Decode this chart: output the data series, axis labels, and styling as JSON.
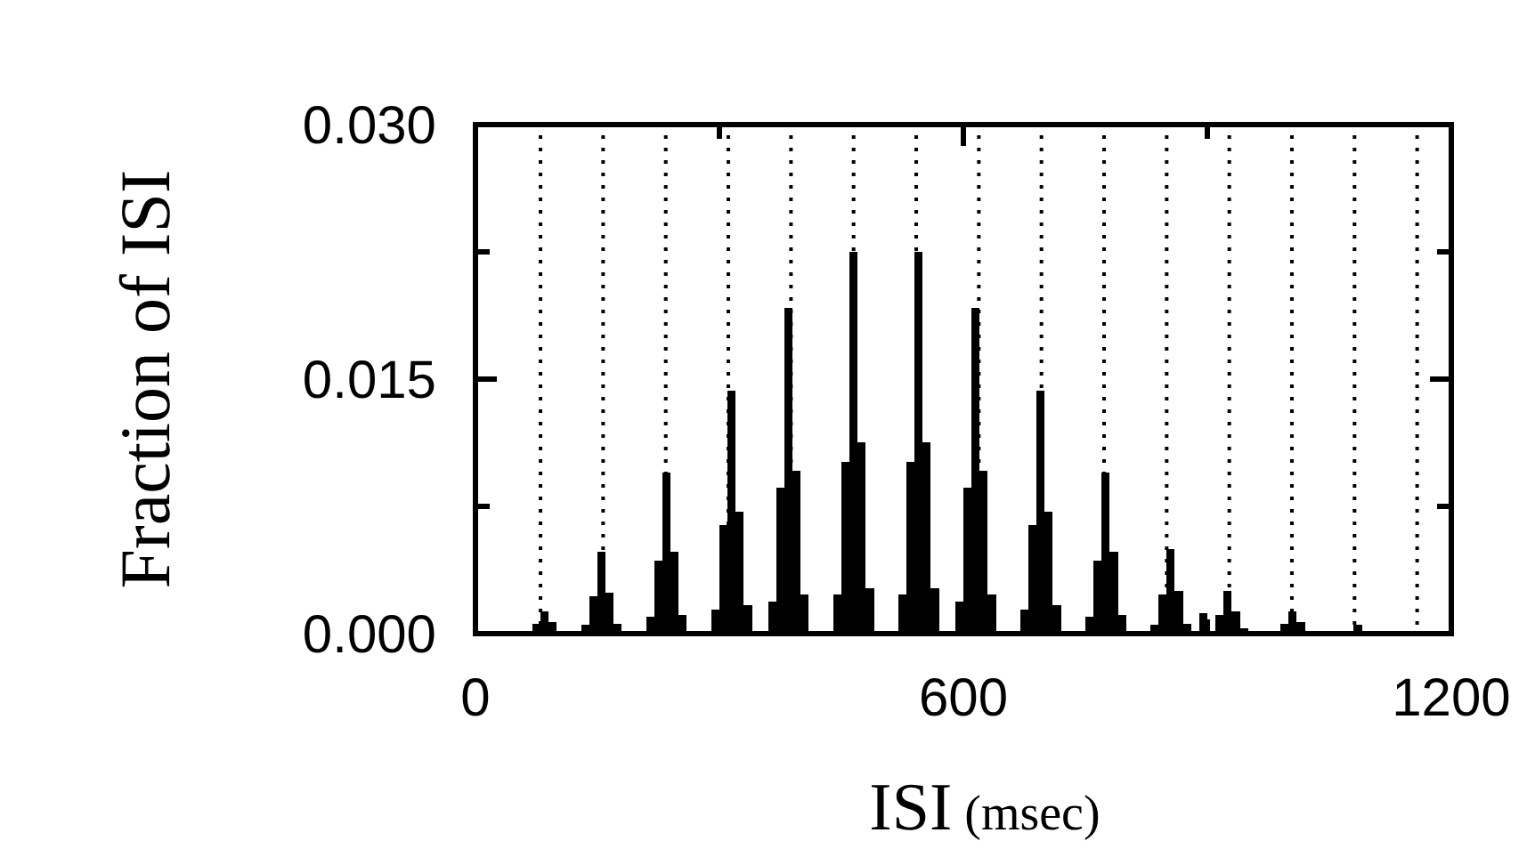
{
  "chart_data": {
    "type": "histogram",
    "xlabel": "ISI (msec)",
    "ylabel": "Fraction of ISI",
    "bins": [
      0,
      10,
      20,
      30,
      40,
      50,
      60,
      70,
      80,
      90,
      100,
      110,
      120,
      130,
      140,
      150,
      160,
      170,
      180,
      190,
      200,
      210,
      220,
      230,
      240,
      250,
      260,
      270,
      280,
      290,
      300,
      310,
      320,
      330,
      340,
      350,
      360,
      370,
      380,
      390,
      400,
      410,
      420,
      430,
      440,
      450,
      460,
      470,
      480,
      490,
      500,
      510,
      520,
      530,
      540,
      550,
      560,
      570,
      580,
      590,
      600,
      610,
      620,
      630,
      640,
      650,
      660,
      670,
      680,
      690,
      700,
      710,
      720,
      730,
      740,
      750,
      760,
      770,
      780,
      790,
      800,
      810,
      820,
      830,
      840,
      850,
      860,
      870,
      880,
      890,
      900,
      910,
      920,
      930,
      940,
      950,
      960,
      970,
      980,
      990,
      1000,
      1010,
      1020,
      1030,
      1040,
      1050,
      1060,
      1070,
      1080,
      1090,
      1100,
      1110,
      1120,
      1130,
      1140,
      1150,
      1160,
      1170,
      1180,
      1190,
      1200
    ],
    "values": [
      0,
      0,
      0,
      0,
      0,
      0,
      0.0001,
      0.0006,
      0.0013,
      0.0007,
      null,
      0,
      0,
      0.0005,
      0.0022,
      0.0048,
      0.0024,
      0.0006,
      0,
      0,
      0,
      0.001,
      0.0043,
      0.0095,
      0.0048,
      0.0011,
      0,
      0,
      0,
      0.0014,
      0.0064,
      0.0143,
      0.0072,
      0.0017,
      0,
      0,
      0.0019,
      0.0086,
      0.0192,
      0.0096,
      0.0023,
      0,
      0,
      0,
      0.0023,
      0.0101,
      0.0225,
      0.0113,
      0.0027,
      0,
      0,
      0,
      0.0023,
      0.0101,
      0.0225,
      0.0113,
      0.0027,
      0,
      0,
      0.0019,
      0.0086,
      0.0192,
      0.0096,
      0.0023,
      0,
      0,
      0,
      0.0014,
      0.0064,
      0.0143,
      0.0072,
      0.0017,
      0,
      0,
      0,
      0.001,
      0.0043,
      0.0095,
      0.0048,
      0.0011,
      0,
      0,
      0,
      0.0005,
      0.0023,
      0.005,
      0.0025,
      0.0006,
      0,
      0.0012,
      null,
      0.0011,
      0.0025,
      0.0013,
      0.0003,
      0,
      0,
      0,
      0.0001,
      0.0006,
      0.0013,
      0.0007,
      null,
      0,
      0,
      0,
      0,
      null,
      0.0005,
      null,
      0,
      0,
      0,
      0,
      0,
      0,
      0,
      0,
      0,
      0
    ],
    "color": "#000000",
    "xlim": [
      0,
      1200
    ],
    "xticks": [
      0,
      {
        "value": 300,
        "label": null
      },
      600,
      {
        "value": 900,
        "label": null
      },
      1200
    ],
    "ylim": [
      0,
      0.03
    ],
    "yticks": [
      {
        "value": 0,
        "label": "0.000"
      },
      {
        "value": 0.0075,
        "label": null
      },
      {
        "value": 0.015,
        "label": "0.015"
      },
      {
        "value": 0.0225,
        "label": null
      },
      {
        "value": 0.03,
        "label": "0.030"
      }
    ],
    "ref_lines": [
      {
        "axis": "x",
        "value": 80,
        "line_style": "dotted",
        "color": "#000000"
      },
      {
        "axis": "x",
        "value": 157,
        "line_style": "dotted",
        "color": "#000000"
      },
      {
        "axis": "x",
        "value": 234,
        "line_style": "dotted",
        "color": "#000000"
      },
      {
        "axis": "x",
        "value": 311,
        "line_style": "dotted",
        "color": "#000000"
      },
      {
        "axis": "x",
        "value": 388,
        "line_style": "dotted",
        "color": "#000000"
      },
      {
        "axis": "x",
        "value": 465,
        "line_style": "dotted",
        "color": "#000000"
      },
      {
        "axis": "x",
        "value": 542,
        "line_style": "dotted",
        "color": "#000000"
      },
      {
        "axis": "x",
        "value": 619,
        "line_style": "dotted",
        "color": "#000000"
      },
      {
        "axis": "x",
        "value": 696,
        "line_style": "dotted",
        "color": "#000000"
      },
      {
        "axis": "x",
        "value": 773,
        "line_style": "dotted",
        "color": "#000000"
      },
      {
        "axis": "x",
        "value": 850,
        "line_style": "dotted",
        "color": "#000000"
      },
      {
        "axis": "x",
        "value": 927,
        "line_style": "dotted",
        "color": "#000000"
      },
      {
        "axis": "x",
        "value": 1004,
        "line_style": "dotted",
        "color": "#000000"
      },
      {
        "axis": "x",
        "value": 1081,
        "line_style": "dotted",
        "color": "#000000"
      },
      {
        "axis": "x",
        "value": 1158,
        "line_style": "dotted",
        "color": "#000000"
      }
    ]
  }
}
